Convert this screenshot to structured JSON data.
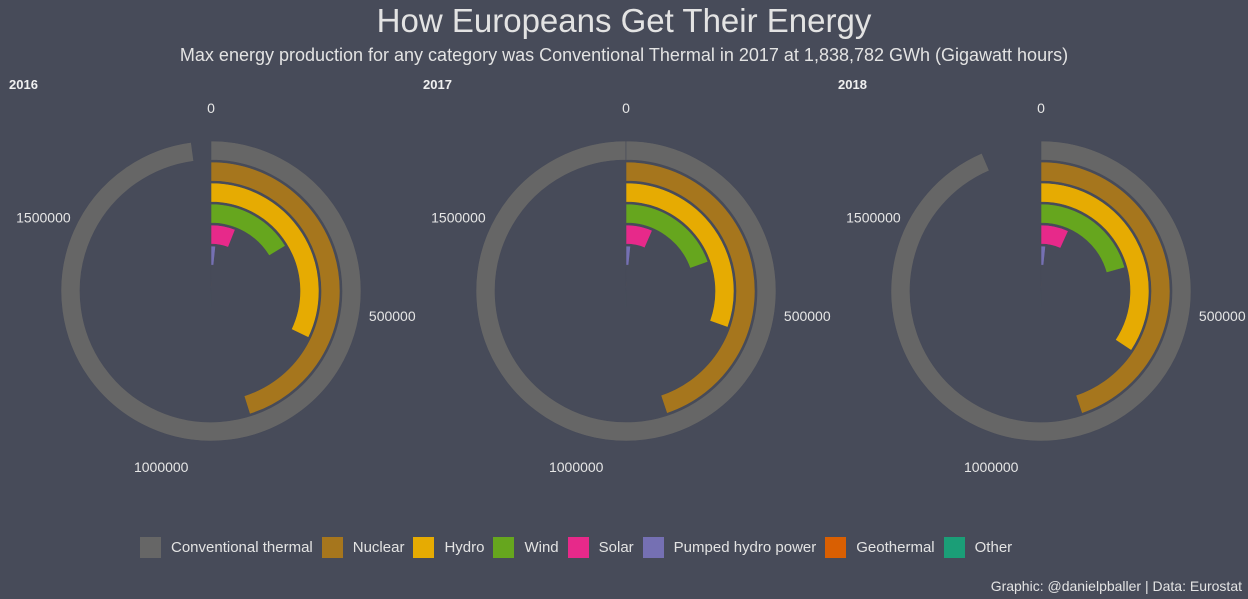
{
  "title": "How Europeans Get Their Energy",
  "subtitle": "Max energy production for any category was Conventional Thermal in 2017 at 1,838,782 GWh (Gigawatt hours)",
  "caption": "Graphic: @danielpballer | Data: Eurostat",
  "colors": {
    "background": "#474b59",
    "Conventional thermal": "#666666",
    "Nuclear": "#a6761d",
    "Hydro": "#e6ab02",
    "Wind": "#66a61e",
    "Solar": "#e7298a",
    "Pumped hydro power": "#7570b3",
    "Geothermal": "#d95f02",
    "Other": "#1b9e77"
  },
  "chart_data": {
    "type": "radial-bar",
    "theta_max": 1838782,
    "theta_ticks": [
      0,
      500000,
      1000000,
      1500000
    ],
    "panels": [
      {
        "label": "2016",
        "series": [
          {
            "name": "Conventional thermal",
            "value": 1800000
          },
          {
            "name": "Nuclear",
            "value": 830000
          },
          {
            "name": "Hydro",
            "value": 590000
          },
          {
            "name": "Wind",
            "value": 300000
          },
          {
            "name": "Solar",
            "value": 110000
          },
          {
            "name": "Pumped hydro power",
            "value": 30000
          },
          {
            "name": "Geothermal",
            "value": 6000
          },
          {
            "name": "Other",
            "value": 2500
          }
        ]
      },
      {
        "label": "2017",
        "series": [
          {
            "name": "Conventional thermal",
            "value": 1838782
          },
          {
            "name": "Nuclear",
            "value": 825000
          },
          {
            "name": "Hydro",
            "value": 560000
          },
          {
            "name": "Wind",
            "value": 360000
          },
          {
            "name": "Solar",
            "value": 120000
          },
          {
            "name": "Pumped hydro power",
            "value": 30000
          },
          {
            "name": "Geothermal",
            "value": 6000
          },
          {
            "name": "Other",
            "value": 2500
          }
        ]
      },
      {
        "label": "2018",
        "series": [
          {
            "name": "Conventional thermal",
            "value": 1720000
          },
          {
            "name": "Nuclear",
            "value": 825000
          },
          {
            "name": "Hydro",
            "value": 630000
          },
          {
            "name": "Wind",
            "value": 380000
          },
          {
            "name": "Solar",
            "value": 125000
          },
          {
            "name": "Pumped hydro power",
            "value": 30000
          },
          {
            "name": "Geothermal",
            "value": 6000
          },
          {
            "name": "Other",
            "value": 2500
          }
        ]
      }
    ],
    "legend": [
      "Conventional thermal",
      "Nuclear",
      "Hydro",
      "Wind",
      "Solar",
      "Pumped hydro power",
      "Geothermal",
      "Other"
    ],
    "legend_position": "bottom"
  }
}
